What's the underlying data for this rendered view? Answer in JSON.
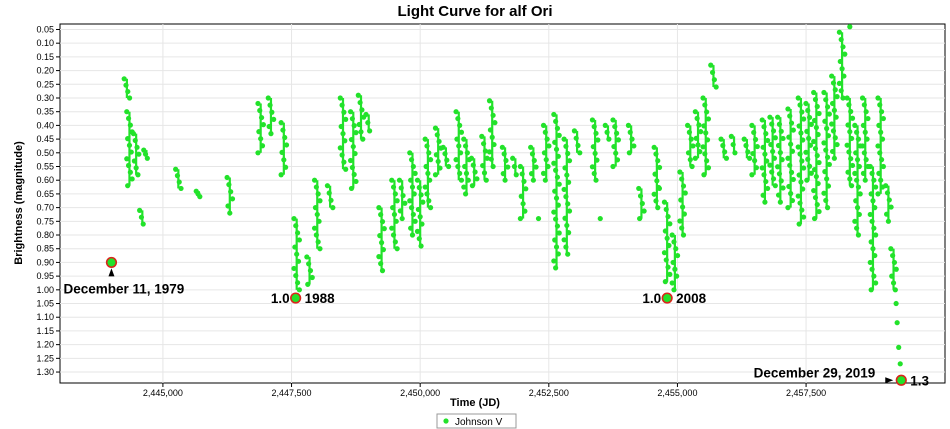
{
  "chart_data": {
    "type": "scatter",
    "title": "Light Curve for alf Ori",
    "xlabel": "Time (JD)",
    "ylabel": "Brightness (magnitude)",
    "xlim": [
      2443000,
      2460200
    ],
    "ylim": [
      1.34,
      0.03
    ],
    "y_inverted": true,
    "grid": true,
    "legend_position": "bottom-center",
    "x_ticks": [
      2445000,
      2447500,
      2450000,
      2452500,
      2455000,
      2457500
    ],
    "x_tick_labels": [
      "2,445,000",
      "2,447,500",
      "2,450,000",
      "2,452,500",
      "2,455,000",
      "2,457,500"
    ],
    "y_ticks": [
      0.05,
      0.1,
      0.15,
      0.2,
      0.25,
      0.3,
      0.35,
      0.4,
      0.45,
      0.5,
      0.55,
      0.6,
      0.65,
      0.7,
      0.75,
      0.8,
      0.85,
      0.9,
      0.95,
      1.0,
      1.05,
      1.1,
      1.15,
      1.2,
      1.25,
      1.3
    ],
    "y_tick_labels": [
      "0.05",
      "0.10",
      "0.15",
      "0.20",
      "0.25",
      "0.30",
      "0.35",
      "0.40",
      "0.45",
      "0.50",
      "0.55",
      "0.60",
      "0.65",
      "0.70",
      "0.75",
      "0.80",
      "0.85",
      "0.90",
      "0.95",
      "1.00",
      "1.05",
      "1.10",
      "1.15",
      "1.20",
      "1.25",
      "1.30"
    ],
    "series": [
      {
        "name": "Johnson V",
        "color": "#22e22a",
        "segments": [
          [
            2444300,
            0.23,
            0.3
          ],
          [
            2444350,
            0.35,
            0.62
          ],
          [
            2444480,
            0.43,
            0.58
          ],
          [
            2444600,
            0.71,
            0.76
          ],
          [
            2444680,
            0.49,
            0.52
          ],
          [
            2445300,
            0.56,
            0.63
          ],
          [
            2445700,
            0.64,
            0.66
          ],
          [
            2446300,
            0.59,
            0.72
          ],
          [
            2446900,
            0.32,
            0.5
          ],
          [
            2447100,
            0.3,
            0.43
          ],
          [
            2447350,
            0.39,
            0.58
          ],
          [
            2447600,
            0.74,
            1.0
          ],
          [
            2447850,
            0.88,
            0.98
          ],
          [
            2448000,
            0.6,
            0.85
          ],
          [
            2448250,
            0.62,
            0.7
          ],
          [
            2448500,
            0.3,
            0.56
          ],
          [
            2448700,
            0.35,
            0.63
          ],
          [
            2448850,
            0.29,
            0.45
          ],
          [
            2449000,
            0.36,
            0.42
          ],
          [
            2449250,
            0.7,
            0.93
          ],
          [
            2449500,
            0.6,
            0.85
          ],
          [
            2449650,
            0.6,
            0.74
          ],
          [
            2449850,
            0.5,
            0.8
          ],
          [
            2450000,
            0.6,
            0.84
          ],
          [
            2450150,
            0.45,
            0.7
          ],
          [
            2450350,
            0.41,
            0.58
          ],
          [
            2450500,
            0.48,
            0.55
          ],
          [
            2450750,
            0.35,
            0.6
          ],
          [
            2450900,
            0.45,
            0.65
          ],
          [
            2451050,
            0.52,
            0.62
          ],
          [
            2451250,
            0.44,
            0.6
          ],
          [
            2451400,
            0.31,
            0.55
          ],
          [
            2451650,
            0.48,
            0.6
          ],
          [
            2451850,
            0.52,
            0.58
          ],
          [
            2452000,
            0.55,
            0.74
          ],
          [
            2452200,
            0.48,
            0.6
          ],
          [
            2452450,
            0.4,
            0.6
          ],
          [
            2452650,
            0.36,
            0.92
          ],
          [
            2452850,
            0.45,
            0.87
          ],
          [
            2453050,
            0.42,
            0.5
          ],
          [
            2453400,
            0.38,
            0.6
          ],
          [
            2453650,
            0.4,
            0.45
          ],
          [
            2453800,
            0.38,
            0.55
          ],
          [
            2454100,
            0.4,
            0.5
          ],
          [
            2454300,
            0.63,
            0.74
          ],
          [
            2454600,
            0.48,
            0.7
          ],
          [
            2454800,
            0.68,
            0.97
          ],
          [
            2454950,
            0.8,
            1.0
          ],
          [
            2455100,
            0.57,
            0.8
          ],
          [
            2455250,
            0.4,
            0.55
          ],
          [
            2455400,
            0.35,
            0.52
          ],
          [
            2455550,
            0.3,
            0.58
          ],
          [
            2455700,
            0.18,
            0.26
          ],
          [
            2455900,
            0.45,
            0.52
          ],
          [
            2456100,
            0.44,
            0.5
          ],
          [
            2456350,
            0.45,
            0.52
          ],
          [
            2456500,
            0.4,
            0.58
          ],
          [
            2456700,
            0.38,
            0.68
          ],
          [
            2456850,
            0.37,
            0.62
          ],
          [
            2457000,
            0.37,
            0.68
          ],
          [
            2457200,
            0.34,
            0.7
          ],
          [
            2457400,
            0.3,
            0.76
          ],
          [
            2457550,
            0.32,
            0.6
          ],
          [
            2457700,
            0.28,
            0.74
          ],
          [
            2457900,
            0.28,
            0.7
          ],
          [
            2458050,
            0.22,
            0.52
          ],
          [
            2458200,
            0.06,
            0.3
          ],
          [
            2458350,
            0.3,
            0.62
          ],
          [
            2458500,
            0.4,
            0.8
          ],
          [
            2458650,
            0.3,
            0.6
          ],
          [
            2458800,
            0.55,
            1.0
          ],
          [
            2458950,
            0.3,
            0.65
          ],
          [
            2459100,
            0.62,
            0.75
          ],
          [
            2459200,
            0.85,
            1.0
          ]
        ],
        "points": [
          [
            2444000,
            0.9
          ],
          [
            2447580,
            1.03
          ],
          [
            2454800,
            1.03
          ],
          [
            2459250,
            1.05
          ],
          [
            2459270,
            1.12
          ],
          [
            2459300,
            1.21
          ],
          [
            2459330,
            1.27
          ],
          [
            2459350,
            1.33
          ],
          [
            2458350,
            0.04
          ],
          [
            2452300,
            0.74
          ],
          [
            2454650,
            0.63
          ],
          [
            2453500,
            0.74
          ]
        ]
      }
    ],
    "annotations": [
      {
        "text": "December 11, 1979",
        "x": 2444000,
        "y": 0.9
      },
      {
        "text": "1.0",
        "x": 2447580,
        "y": 1.03
      },
      {
        "text": "1988",
        "x": 2447580,
        "y": 1.03
      },
      {
        "text": "1.0",
        "x": 2454800,
        "y": 1.03
      },
      {
        "text": "2008",
        "x": 2454800,
        "y": 1.03
      },
      {
        "text": "December 29, 2019",
        "x": 2459350,
        "y": 1.33
      },
      {
        "text": "1.3",
        "x": 2459350,
        "y": 1.33
      }
    ]
  }
}
